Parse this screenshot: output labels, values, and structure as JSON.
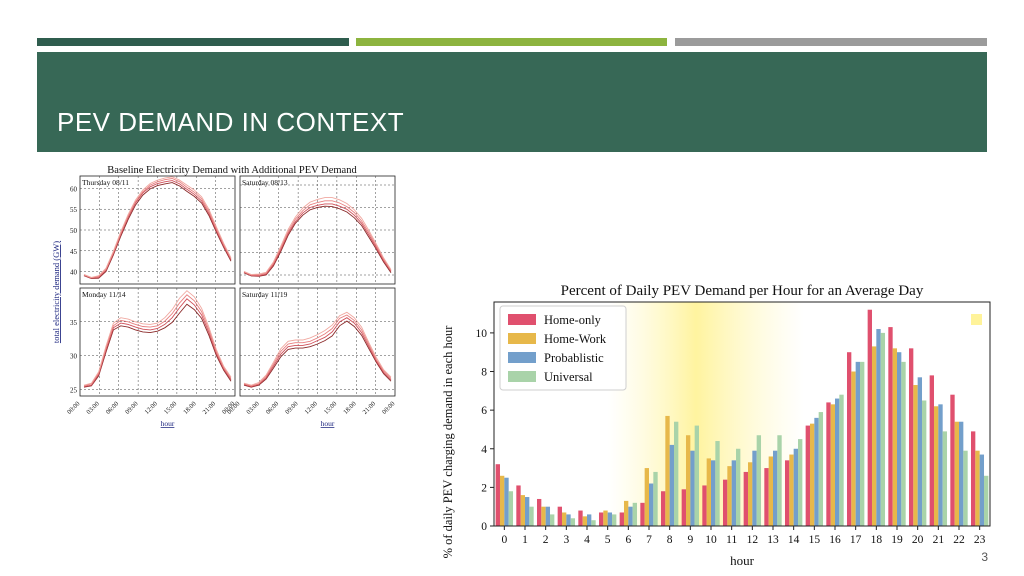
{
  "slide": {
    "title": "PEV DEMAND IN CONTEXT",
    "number": "3"
  },
  "colors": {
    "header_bg": "#376856",
    "accent_green": "#8db43f",
    "accent_gray": "#9b9b9b"
  },
  "chart_data": [
    {
      "type": "line",
      "title": "Baseline Electricity Demand with Additional PEV Demand",
      "ylabel": "total electricity demand (GW)",
      "xlabel": "hour",
      "x_ticks": [
        "00:00",
        "03:00",
        "06:00",
        "09:00",
        "12:00",
        "15:00",
        "18:00",
        "21:00",
        "00:00"
      ],
      "grid": true,
      "panels": [
        {
          "label": "Thursday 08/11",
          "ylim": [
            37,
            63
          ],
          "yticks": [
            40,
            45,
            50,
            55,
            60
          ],
          "series": [
            {
              "values": [
                39.0,
                38.3,
                38.4,
                40.0,
                44.0,
                48.5,
                52.5,
                56.0,
                58.4,
                59.9,
                60.7,
                61.1,
                61.4,
                60.6,
                59.3,
                58.1,
                56.5,
                53.5,
                49.5,
                45.8,
                42.5
              ]
            },
            {
              "values": [
                39.1,
                38.4,
                38.6,
                40.3,
                44.3,
                48.9,
                53.0,
                56.5,
                58.9,
                60.4,
                61.2,
                61.6,
                61.9,
                61.1,
                59.8,
                58.6,
                57.0,
                54.0,
                49.9,
                46.1,
                42.8
              ]
            },
            {
              "values": [
                39.2,
                38.5,
                38.8,
                40.5,
                44.6,
                49.2,
                53.3,
                56.8,
                59.2,
                60.8,
                61.6,
                62.1,
                62.4,
                61.6,
                60.3,
                59.1,
                57.5,
                54.5,
                50.4,
                46.5,
                43.1
              ]
            },
            {
              "values": [
                39.3,
                38.6,
                39.0,
                40.8,
                44.9,
                49.6,
                53.7,
                57.2,
                59.6,
                61.2,
                62.0,
                62.5,
                62.8,
                62.0,
                60.8,
                59.6,
                58.0,
                55.0,
                50.8,
                46.8,
                43.3
              ]
            }
          ]
        },
        {
          "label": "Saturday 08/13",
          "ylim": [
            38,
            62
          ],
          "yticks": [],
          "series": [
            {
              "values": [
                40.5,
                39.8,
                39.7,
                40.0,
                42.0,
                45.2,
                48.8,
                51.5,
                53.3,
                54.5,
                55.0,
                55.3,
                55.2,
                54.7,
                54.0,
                52.7,
                51.0,
                48.4,
                45.7,
                42.9,
                40.5
              ]
            },
            {
              "values": [
                40.6,
                39.9,
                39.8,
                40.2,
                42.3,
                45.6,
                49.2,
                51.9,
                53.8,
                55.0,
                55.5,
                55.8,
                55.8,
                55.3,
                54.6,
                53.3,
                51.5,
                48.9,
                46.1,
                43.2,
                40.8
              ]
            },
            {
              "values": [
                40.7,
                40.0,
                40.0,
                40.4,
                42.6,
                46.0,
                49.6,
                52.4,
                54.3,
                55.6,
                56.1,
                56.5,
                56.5,
                56.0,
                55.2,
                53.9,
                52.0,
                49.4,
                46.5,
                43.5,
                41.0
              ]
            },
            {
              "values": [
                40.8,
                40.1,
                40.2,
                40.6,
                42.9,
                46.4,
                50.1,
                52.9,
                54.9,
                56.2,
                56.8,
                57.2,
                57.2,
                56.7,
                55.9,
                54.5,
                52.6,
                49.9,
                46.9,
                43.8,
                41.2
              ]
            }
          ]
        },
        {
          "label": "Monday 11/14",
          "ylim": [
            24,
            40
          ],
          "yticks": [
            25,
            30,
            35
          ],
          "series": [
            {
              "values": [
                25.3,
                25.5,
                27.0,
                30.5,
                33.8,
                34.4,
                34.2,
                33.8,
                33.5,
                33.4,
                33.6,
                34.1,
                34.9,
                36.3,
                37.6,
                36.8,
                35.5,
                33.0,
                30.0,
                27.8,
                26.2
              ]
            },
            {
              "values": [
                25.4,
                25.6,
                27.2,
                30.8,
                34.1,
                34.8,
                34.6,
                34.2,
                33.9,
                33.8,
                34.0,
                34.6,
                35.6,
                37.1,
                38.4,
                37.5,
                36.0,
                33.4,
                30.3,
                28.0,
                26.4
              ]
            },
            {
              "values": [
                25.5,
                25.8,
                27.4,
                31.1,
                34.4,
                35.2,
                35.0,
                34.6,
                34.3,
                34.2,
                34.4,
                35.1,
                36.2,
                37.8,
                39.0,
                38.1,
                36.5,
                33.8,
                30.6,
                28.2,
                26.6
              ]
            },
            {
              "values": [
                25.6,
                25.9,
                27.6,
                31.4,
                34.8,
                35.6,
                35.4,
                35.0,
                34.7,
                34.6,
                34.8,
                35.6,
                36.8,
                38.5,
                39.6,
                38.7,
                37.0,
                34.2,
                30.9,
                28.4,
                26.8
              ]
            }
          ]
        },
        {
          "label": "Saturday 11/19",
          "ylim": [
            24,
            40
          ],
          "yticks": [],
          "series": [
            {
              "values": [
                25.6,
                25.3,
                25.6,
                26.5,
                28.1,
                29.8,
                30.9,
                31.1,
                31.1,
                31.3,
                31.7,
                32.2,
                32.9,
                34.4,
                35.1,
                34.3,
                33.0,
                31.0,
                29.0,
                27.3,
                26.2
              ]
            },
            {
              "values": [
                25.7,
                25.4,
                25.7,
                26.7,
                28.4,
                30.2,
                31.3,
                31.5,
                31.5,
                31.7,
                32.2,
                32.7,
                33.5,
                35.0,
                35.6,
                34.8,
                33.4,
                31.3,
                29.2,
                27.5,
                26.4
              ]
            },
            {
              "values": [
                25.8,
                25.5,
                25.8,
                26.9,
                28.7,
                30.6,
                31.7,
                31.9,
                31.9,
                32.1,
                32.6,
                33.2,
                34.0,
                35.5,
                36.0,
                35.2,
                33.8,
                31.6,
                29.4,
                27.7,
                26.6
              ]
            },
            {
              "values": [
                25.9,
                25.6,
                26.0,
                27.1,
                29.0,
                31.0,
                32.1,
                32.3,
                32.3,
                32.6,
                33.1,
                33.7,
                34.5,
                35.9,
                36.4,
                35.6,
                34.2,
                31.9,
                29.7,
                27.9,
                26.8
              ]
            }
          ]
        }
      ]
    },
    {
      "type": "bar",
      "title": "Percent of Daily PEV Demand per Hour for an Average Day",
      "xlabel": "hour",
      "ylabel": "% of daily PEV charging demand in each hour",
      "ylim": [
        0,
        11.6
      ],
      "yticks": [
        0,
        2,
        4,
        6,
        8,
        10
      ],
      "categories": [
        "0",
        "1",
        "2",
        "3",
        "4",
        "5",
        "6",
        "7",
        "8",
        "9",
        "10",
        "11",
        "12",
        "13",
        "14",
        "15",
        "16",
        "17",
        "18",
        "19",
        "20",
        "21",
        "22",
        "23"
      ],
      "legend_position": "top-left",
      "series": [
        {
          "name": "Home-only",
          "color": "#e0506e",
          "values": [
            3.2,
            2.1,
            1.4,
            1.0,
            0.8,
            0.7,
            0.7,
            1.2,
            1.8,
            1.9,
            2.1,
            2.4,
            2.8,
            3.0,
            3.4,
            5.2,
            6.4,
            9.0,
            11.2,
            10.3,
            9.2,
            7.8,
            6.8,
            4.9
          ]
        },
        {
          "name": "Home-Work",
          "color": "#e7b84a",
          "values": [
            2.6,
            1.6,
            1.0,
            0.7,
            0.5,
            0.8,
            1.3,
            3.0,
            5.7,
            4.7,
            3.5,
            3.1,
            3.3,
            3.6,
            3.7,
            5.3,
            6.3,
            8.0,
            9.3,
            9.2,
            7.3,
            6.2,
            5.4,
            3.9
          ]
        },
        {
          "name": "Probablistic",
          "color": "#739fcb",
          "values": [
            2.5,
            1.5,
            1.0,
            0.6,
            0.6,
            0.7,
            1.0,
            2.2,
            4.2,
            3.9,
            3.4,
            3.4,
            3.9,
            3.9,
            4.0,
            5.6,
            6.6,
            8.5,
            10.2,
            9.0,
            7.7,
            6.3,
            5.4,
            3.7
          ]
        },
        {
          "name": "Universal",
          "color": "#a9d3a9",
          "values": [
            1.8,
            1.0,
            0.6,
            0.4,
            0.3,
            0.6,
            1.2,
            2.8,
            5.4,
            5.2,
            4.4,
            4.0,
            4.7,
            4.7,
            4.5,
            5.9,
            6.8,
            8.5,
            10.0,
            8.5,
            6.5,
            4.9,
            3.9,
            2.6
          ]
        }
      ]
    }
  ]
}
